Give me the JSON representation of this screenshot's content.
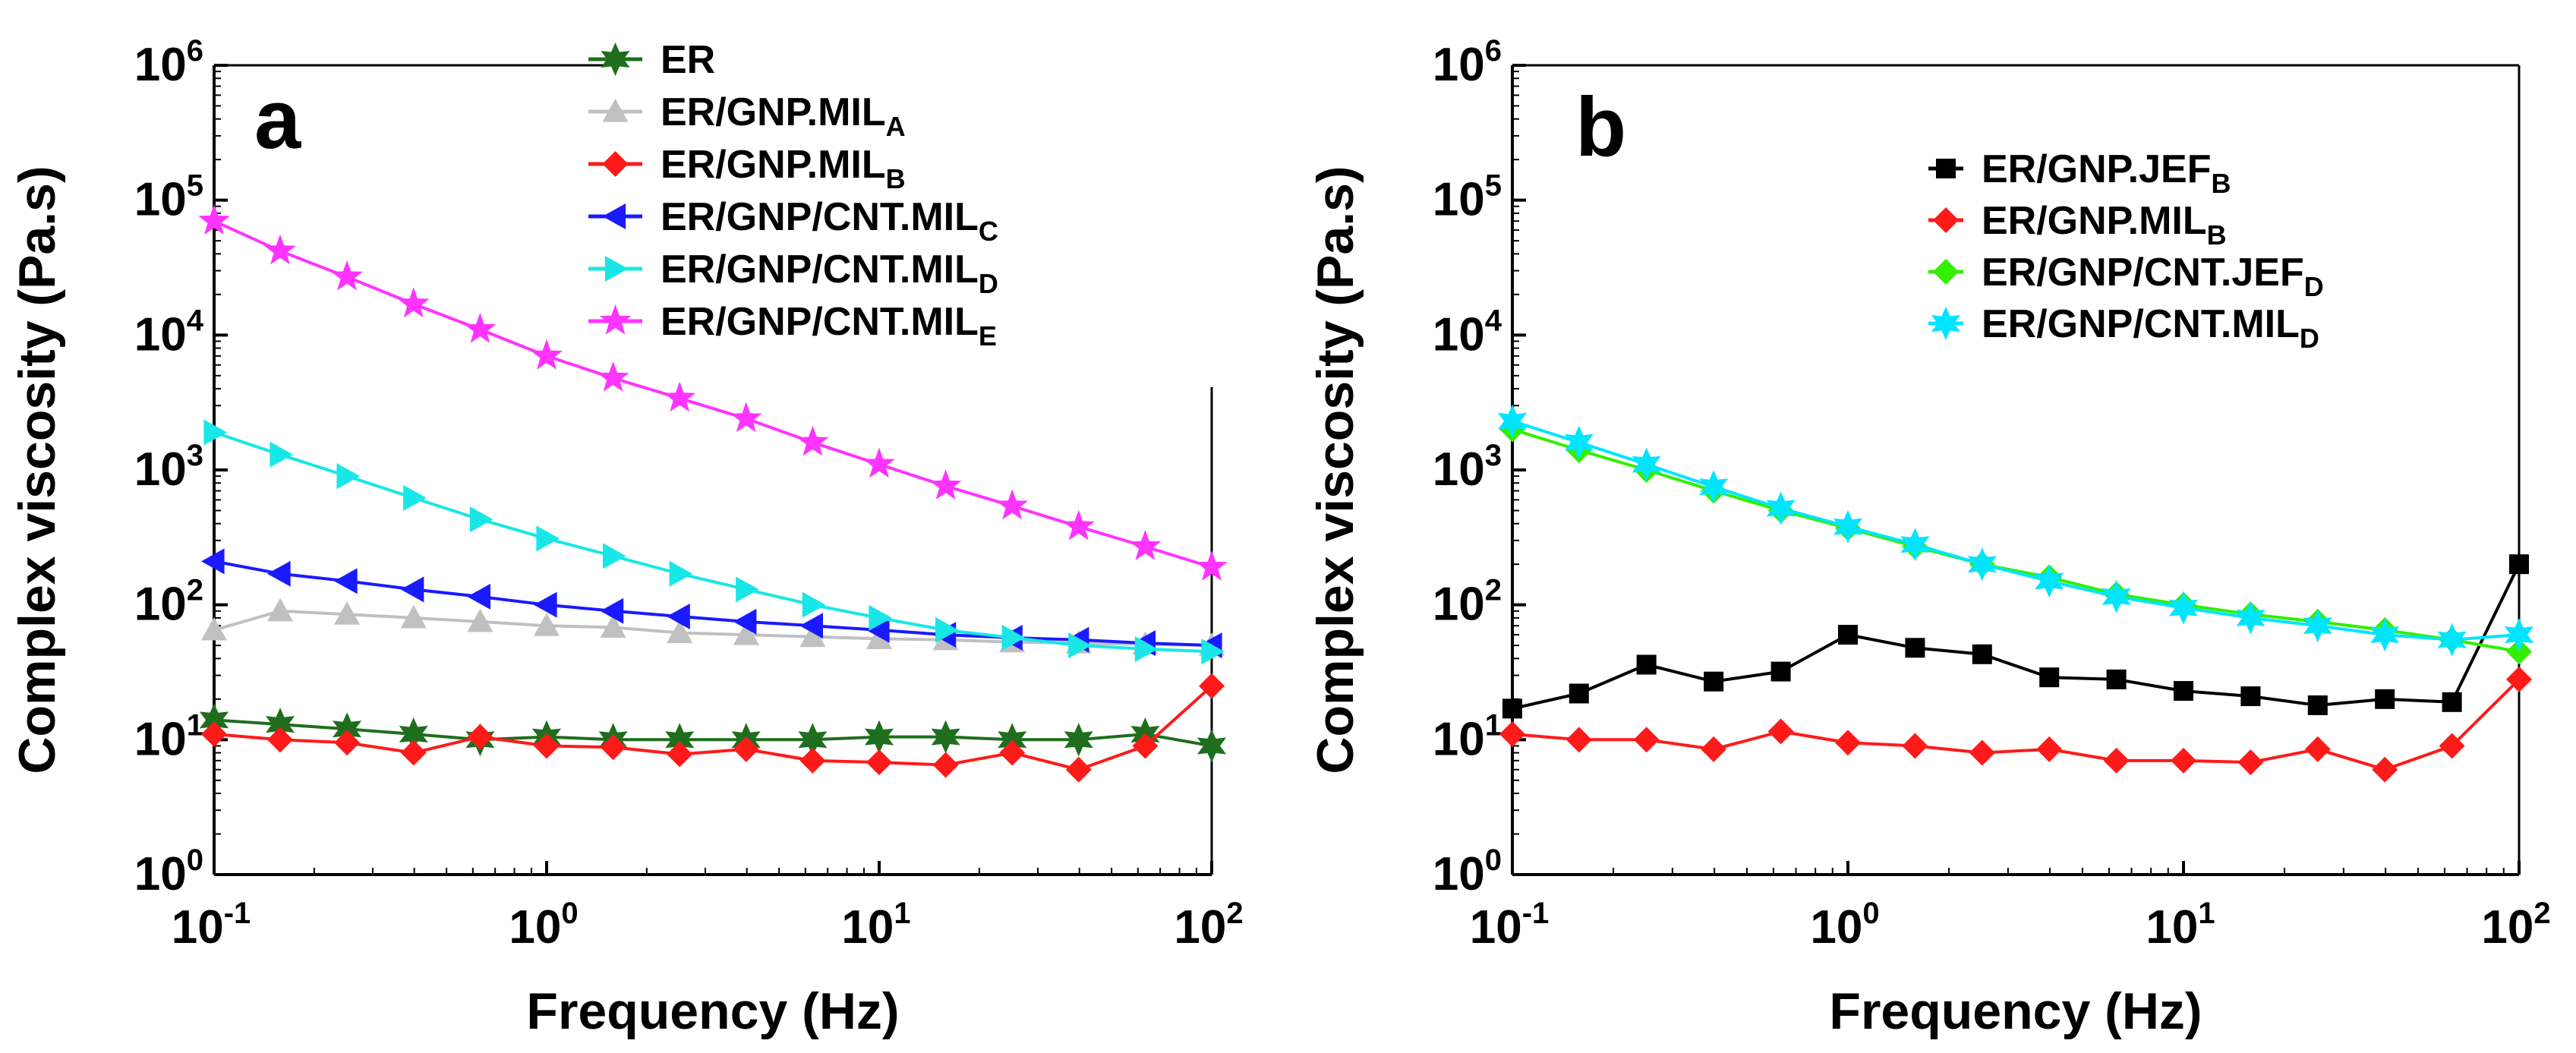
{
  "figure": {
    "panels": [
      "a",
      "b"
    ],
    "ylabel": "Complex viscosity (Pa.s)",
    "xlabel": "Frequency (Hz)"
  },
  "chart_data": [
    {
      "type": "line",
      "panel": "a",
      "title": "",
      "xlabel": "Frequency (Hz)",
      "ylabel": "Complex viscosity (Pa.s)",
      "xscale": "log",
      "yscale": "log",
      "xlim": [
        0.1,
        100
      ],
      "ylim": [
        1,
        1000000
      ],
      "x_ticks": [
        {
          "base": "10",
          "exp": "-1"
        },
        {
          "base": "10",
          "exp": "0"
        },
        {
          "base": "10",
          "exp": "1"
        },
        {
          "base": "10",
          "exp": "2"
        }
      ],
      "y_ticks": [
        {
          "base": "10",
          "exp": "0"
        },
        {
          "base": "10",
          "exp": "1"
        },
        {
          "base": "10",
          "exp": "2"
        },
        {
          "base": "10",
          "exp": "3"
        },
        {
          "base": "10",
          "exp": "4"
        },
        {
          "base": "10",
          "exp": "5"
        },
        {
          "base": "10",
          "exp": "6"
        }
      ],
      "legend_position": "top-center",
      "x": [
        0.1,
        0.158,
        0.251,
        0.398,
        0.631,
        1.0,
        1.585,
        2.512,
        3.981,
        6.31,
        10.0,
        15.85,
        25.12,
        39.81,
        63.1,
        100.0
      ],
      "series": [
        {
          "name": "ER",
          "sub": "",
          "color": "#1e6e1e",
          "marker": "star6",
          "values": [
            14,
            13,
            12,
            11,
            10,
            10.5,
            10,
            10,
            10,
            10,
            10.5,
            10.5,
            10,
            10,
            11,
            9
          ]
        },
        {
          "name": "ER/GNP.MIL",
          "sub": "A",
          "color": "#c0c0c0",
          "marker": "triangle-up",
          "values": [
            65,
            90,
            85,
            80,
            75,
            70,
            68,
            62,
            60,
            58,
            56,
            55,
            53,
            52,
            51,
            50
          ]
        },
        {
          "name": "ER/GNP.MIL",
          "sub": "B",
          "color": "#ff1a1a",
          "marker": "diamond",
          "values": [
            11,
            10,
            9.5,
            8,
            10.5,
            9,
            8.8,
            7.8,
            8.5,
            7,
            6.8,
            6.5,
            8,
            6,
            9,
            25
          ]
        },
        {
          "name": "ER/GNP/CNT.MIL",
          "sub": "C",
          "color": "#1a1aff",
          "marker": "triangle-left",
          "values": [
            210,
            170,
            150,
            130,
            115,
            100,
            90,
            82,
            75,
            70,
            65,
            60,
            57,
            55,
            52,
            50
          ]
        },
        {
          "name": "ER/GNP/CNT.MIL",
          "sub": "D",
          "color": "#19e6e6",
          "marker": "triangle-right",
          "values": [
            1900,
            1300,
            900,
            620,
            430,
            310,
            230,
            170,
            130,
            100,
            80,
            65,
            57,
            50,
            47,
            45
          ]
        },
        {
          "name": "ER/GNP/CNT.MIL",
          "sub": "E",
          "color": "#ff33ff",
          "marker": "star5",
          "values": [
            70000,
            42000,
            27000,
            17000,
            11000,
            7000,
            4800,
            3400,
            2400,
            1600,
            1100,
            760,
            540,
            380,
            270,
            190
          ]
        }
      ]
    },
    {
      "type": "line",
      "panel": "b",
      "title": "",
      "xlabel": "Frequency (Hz)",
      "ylabel": "Complex viscosity (Pa.s)",
      "xscale": "log",
      "yscale": "log",
      "xlim": [
        0.1,
        100
      ],
      "ylim": [
        1,
        1000000
      ],
      "x_ticks": [
        {
          "base": "10",
          "exp": "-1"
        },
        {
          "base": "10",
          "exp": "0"
        },
        {
          "base": "10",
          "exp": "1"
        },
        {
          "base": "10",
          "exp": "2"
        }
      ],
      "y_ticks": [
        {
          "base": "10",
          "exp": "0"
        },
        {
          "base": "10",
          "exp": "1"
        },
        {
          "base": "10",
          "exp": "2"
        },
        {
          "base": "10",
          "exp": "3"
        },
        {
          "base": "10",
          "exp": "4"
        },
        {
          "base": "10",
          "exp": "5"
        },
        {
          "base": "10",
          "exp": "6"
        }
      ],
      "legend_position": "top-right",
      "x": [
        0.1,
        0.158,
        0.251,
        0.398,
        0.631,
        1.0,
        1.585,
        2.512,
        3.981,
        6.31,
        10.0,
        15.85,
        25.12,
        39.81,
        63.1,
        100.0
      ],
      "series": [
        {
          "name": "ER/GNP.JEF",
          "sub": "B",
          "color": "#000000",
          "marker": "square",
          "values": [
            17,
            22,
            36,
            27,
            32,
            60,
            48,
            43,
            29,
            28,
            23,
            21,
            18,
            20,
            19,
            200
          ]
        },
        {
          "name": "ER/GNP.MIL",
          "sub": "B",
          "color": "#ff1a1a",
          "marker": "diamond",
          "values": [
            11,
            10,
            10,
            8.5,
            11.5,
            9.5,
            9,
            8,
            8.5,
            7,
            7,
            6.8,
            8.5,
            6,
            9,
            28
          ]
        },
        {
          "name": "ER/GNP/CNT.JEF",
          "sub": "D",
          "color": "#33ee00",
          "marker": "diamond",
          "values": [
            2000,
            1400,
            1000,
            700,
            500,
            370,
            270,
            200,
            160,
            120,
            100,
            85,
            75,
            65,
            55,
            45
          ]
        },
        {
          "name": "ER/GNP/CNT.MIL",
          "sub": "D",
          "color": "#00e5ff",
          "marker": "star6",
          "values": [
            2300,
            1600,
            1100,
            750,
            520,
            380,
            280,
            200,
            150,
            115,
            95,
            80,
            70,
            60,
            55,
            60
          ]
        }
      ]
    }
  ]
}
